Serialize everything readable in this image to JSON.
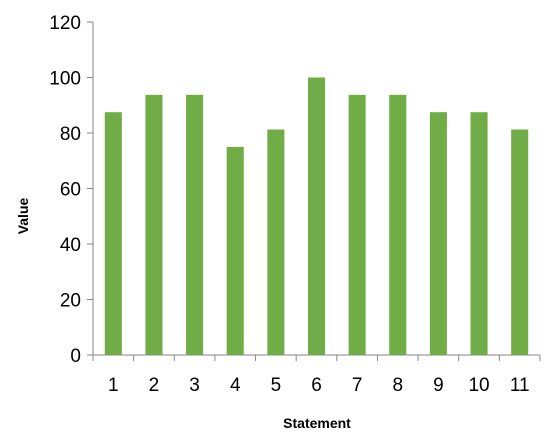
{
  "chart_data": {
    "type": "bar",
    "categories": [
      "1",
      "2",
      "3",
      "4",
      "5",
      "6",
      "7",
      "8",
      "9",
      "10",
      "11"
    ],
    "values": [
      87.5,
      93.75,
      93.75,
      75,
      81.25,
      100,
      93.75,
      93.75,
      87.5,
      87.5,
      81.25
    ],
    "title": "",
    "xlabel": "Statement",
    "ylabel": "Value",
    "ylim": [
      0,
      120
    ],
    "yticks": [
      0,
      20,
      40,
      60,
      80,
      100,
      120
    ],
    "grid": false,
    "legend": "none",
    "bar_color": "#70ad47",
    "axis_color": "#868686"
  }
}
